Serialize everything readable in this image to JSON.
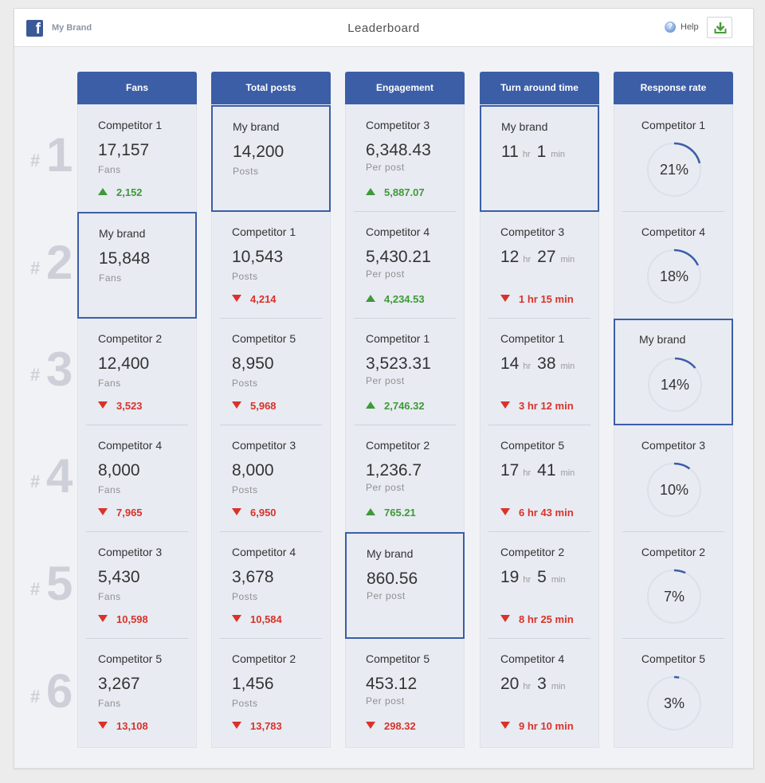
{
  "header": {
    "brand_name": "My Brand",
    "title": "Leaderboard",
    "help_label": "Help",
    "icons": {
      "logo": "facebook-icon",
      "help": "help-icon",
      "download": "download-icon"
    }
  },
  "colors": {
    "accent": "#3b5ea7",
    "up": "#3d9a37",
    "down": "#d9322a"
  },
  "ranks": [
    "1",
    "2",
    "3",
    "4",
    "5",
    "6"
  ],
  "rank_prefix": "#",
  "columns": [
    {
      "title": "Fans",
      "rows": [
        {
          "name": "Competitor 1",
          "value": "17,157",
          "unit": "Fans",
          "change": "2,152",
          "dir": "up"
        },
        {
          "name": "My brand",
          "value": "15,848",
          "unit": "Fans",
          "change": "",
          "dir": "",
          "mine": true
        },
        {
          "name": "Competitor 2",
          "value": "12,400",
          "unit": "Fans",
          "change": "3,523",
          "dir": "down"
        },
        {
          "name": "Competitor 4",
          "value": "8,000",
          "unit": "Fans",
          "change": "7,965",
          "dir": "down"
        },
        {
          "name": "Competitor 3",
          "value": "5,430",
          "unit": "Fans",
          "change": "10,598",
          "dir": "down"
        },
        {
          "name": "Competitor 5",
          "value": "3,267",
          "unit": "Fans",
          "change": "13,108",
          "dir": "down"
        }
      ]
    },
    {
      "title": "Total posts",
      "rows": [
        {
          "name": "My brand",
          "value": "14,200",
          "unit": "Posts",
          "change": "",
          "dir": "",
          "mine": true
        },
        {
          "name": "Competitor 1",
          "value": "10,543",
          "unit": "Posts",
          "change": "4,214",
          "dir": "down"
        },
        {
          "name": "Competitor 5",
          "value": "8,950",
          "unit": "Posts",
          "change": "5,968",
          "dir": "down"
        },
        {
          "name": "Competitor 3",
          "value": "8,000",
          "unit": "Posts",
          "change": "6,950",
          "dir": "down"
        },
        {
          "name": "Competitor 4",
          "value": "3,678",
          "unit": "Posts",
          "change": "10,584",
          "dir": "down"
        },
        {
          "name": "Competitor 2",
          "value": "1,456",
          "unit": "Posts",
          "change": "13,783",
          "dir": "down"
        }
      ]
    },
    {
      "title": "Engagement",
      "rows": [
        {
          "name": "Competitor 3",
          "value": "6,348.43",
          "unit": "Per post",
          "change": "5,887.07",
          "dir": "up"
        },
        {
          "name": "Competitor 4",
          "value": "5,430.21",
          "unit": "Per post",
          "change": "4,234.53",
          "dir": "up"
        },
        {
          "name": "Competitor 1",
          "value": "3,523.31",
          "unit": "Per post",
          "change": "2,746.32",
          "dir": "up"
        },
        {
          "name": "Competitor 2",
          "value": "1,236.7",
          "unit": "Per post",
          "change": "765.21",
          "dir": "up"
        },
        {
          "name": "My brand",
          "value": "860.56",
          "unit": "Per post",
          "change": "",
          "dir": "",
          "mine": true
        },
        {
          "name": "Competitor 5",
          "value": "453.12",
          "unit": "Per post",
          "change": "298.32",
          "dir": "down"
        }
      ]
    },
    {
      "title": "Turn around time",
      "hr_label": "hr",
      "min_label": "min",
      "rows": [
        {
          "name": "My brand",
          "hours": "11",
          "minutes": "1",
          "change": "",
          "dir": "",
          "mine": true
        },
        {
          "name": "Competitor 3",
          "hours": "12",
          "minutes": "27",
          "change": "1 hr 15 min",
          "dir": "down"
        },
        {
          "name": "Competitor 1",
          "hours": "14",
          "minutes": "38",
          "change": "3 hr 12 min",
          "dir": "down"
        },
        {
          "name": "Competitor 5",
          "hours": "17",
          "minutes": "41",
          "change": "6 hr 43 min",
          "dir": "down"
        },
        {
          "name": "Competitor 2",
          "hours": "19",
          "minutes": "5",
          "change": "8 hr 25 min",
          "dir": "down"
        },
        {
          "name": "Competitor 4",
          "hours": "20",
          "minutes": "3",
          "change": "9 hr 10 min",
          "dir": "down"
        }
      ]
    },
    {
      "title": "Response rate",
      "rows": [
        {
          "name": "Competitor 1",
          "percent": 21,
          "label": "21%"
        },
        {
          "name": "Competitor 4",
          "percent": 18,
          "label": "18%"
        },
        {
          "name": "My brand",
          "percent": 14,
          "label": "14%",
          "mine": true
        },
        {
          "name": "Competitor 3",
          "percent": 10,
          "label": "10%"
        },
        {
          "name": "Competitor 2",
          "percent": 7,
          "label": "7%"
        },
        {
          "name": "Competitor 5",
          "percent": 3,
          "label": "3%"
        }
      ]
    }
  ]
}
